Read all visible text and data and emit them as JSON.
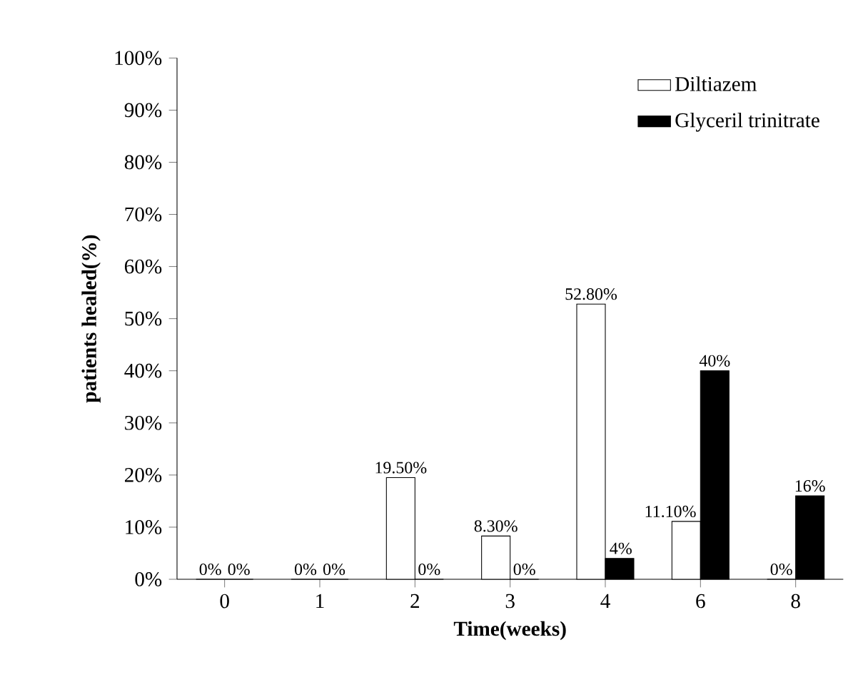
{
  "chart_data": {
    "type": "bar",
    "xlabel": "Time(weeks)",
    "ylabel": "patients healed(%)",
    "categories": [
      "0",
      "1",
      "2",
      "3",
      "4",
      "6",
      "8"
    ],
    "series": [
      {
        "name": "Diltiazem",
        "color": "#ffffff",
        "values": [
          0,
          0,
          19.5,
          8.3,
          52.8,
          11.1,
          0
        ],
        "value_labels": [
          "0%",
          "0%",
          "19.50%",
          "8.30%",
          "52.80%",
          "11.10%",
          "0%"
        ]
      },
      {
        "name": "Glyceril trinitrate",
        "color": "#000000",
        "values": [
          0,
          0,
          0,
          0,
          4,
          40,
          16
        ],
        "value_labels": [
          "0%",
          "0%",
          "0%",
          "0%",
          "4%",
          "40%",
          "16%"
        ]
      }
    ],
    "ylim": [
      0,
      100
    ],
    "yticks": [
      {
        "value": 0,
        "label": "0%"
      },
      {
        "value": 10,
        "label": "10%"
      },
      {
        "value": 20,
        "label": "20%"
      },
      {
        "value": 30,
        "label": "30%"
      },
      {
        "value": 40,
        "label": "40%"
      },
      {
        "value": 50,
        "label": "50%"
      },
      {
        "value": 60,
        "label": "60%"
      },
      {
        "value": 70,
        "label": "70%"
      },
      {
        "value": 80,
        "label": "80%"
      },
      {
        "value": 90,
        "label": "90%"
      },
      {
        "value": 100,
        "label": "100%"
      }
    ],
    "legend": "top right"
  }
}
